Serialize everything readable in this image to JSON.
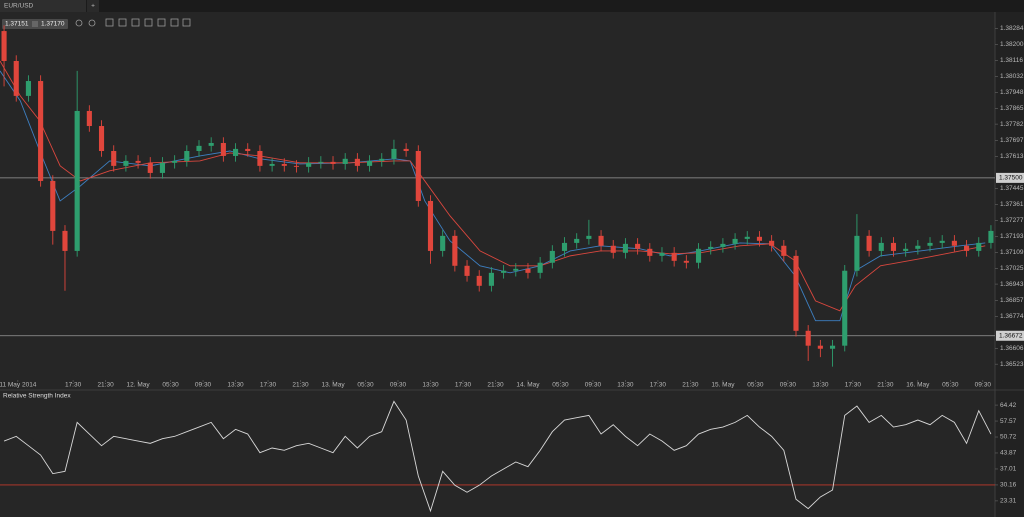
{
  "tabs": [
    "EUR/USD"
  ],
  "new_tab": "+",
  "toolbar": {
    "bid": "1.37151",
    "ask": "1.37170"
  },
  "chart_data": {
    "type": "candlestick",
    "up_color": "#2e9e6e",
    "down_color": "#e0463c",
    "xlim": [
      0,
      122.5
    ],
    "xticks": [
      {
        "value": 2.2,
        "label": "11 May 2014"
      },
      {
        "value": 9,
        "label": "17:30"
      },
      {
        "value": 13,
        "label": "21:30"
      },
      {
        "value": 17,
        "label": "12. May"
      },
      {
        "value": 21,
        "label": "05:30"
      },
      {
        "value": 25,
        "label": "09:30"
      },
      {
        "value": 29,
        "label": "13:30"
      },
      {
        "value": 33,
        "label": "17:30"
      },
      {
        "value": 37,
        "label": "21:30"
      },
      {
        "value": 41,
        "label": "13. May"
      },
      {
        "value": 45,
        "label": "05:30"
      },
      {
        "value": 49,
        "label": "09:30"
      },
      {
        "value": 53,
        "label": "13:30"
      },
      {
        "value": 57,
        "label": "17:30"
      },
      {
        "value": 61,
        "label": "21:30"
      },
      {
        "value": 65,
        "label": "14. May"
      },
      {
        "value": 69,
        "label": "05:30"
      },
      {
        "value": 73,
        "label": "09:30"
      },
      {
        "value": 77,
        "label": "13:30"
      },
      {
        "value": 81,
        "label": "17:30"
      },
      {
        "value": 85,
        "label": "21:30"
      },
      {
        "value": 89,
        "label": "15. May"
      },
      {
        "value": 93,
        "label": "05:30"
      },
      {
        "value": 97,
        "label": "09:30"
      },
      {
        "value": 101,
        "label": "13:30"
      },
      {
        "value": 105,
        "label": "17:30"
      },
      {
        "value": 109,
        "label": "21:30"
      },
      {
        "value": 113,
        "label": "16. May"
      },
      {
        "value": 117,
        "label": "05:30"
      },
      {
        "value": 121,
        "label": "09:30"
      }
    ],
    "ylim": [
      1.3644,
      1.3837
    ],
    "yticks": [
      1.38284,
      {
        "value": 1.382,
        "label": "1.38200"
      },
      1.38116,
      1.38032,
      1.37948,
      1.37865,
      1.37782,
      1.37697,
      1.37613,
      1.37445,
      1.37361,
      1.37277,
      1.37193,
      1.37109,
      1.37025,
      1.36943,
      1.36857,
      1.36774,
      1.36606,
      1.36523
    ],
    "levels": [
      {
        "value": 1.375,
        "label": "1.37500"
      },
      1.36672
    ],
    "x": [
      0.5,
      2,
      3.5,
      5,
      6.5,
      8,
      9.5,
      11,
      12.5,
      14,
      15.5,
      17,
      18.5,
      20,
      21.5,
      23,
      24.5,
      26,
      27.5,
      29,
      30.5,
      32,
      33.5,
      35,
      36.5,
      38,
      39.5,
      41,
      42.5,
      44,
      45.5,
      47,
      48.5,
      50,
      51.5,
      53,
      54.5,
      56,
      57.5,
      59,
      60.5,
      62,
      63.5,
      65,
      66.5,
      68,
      69.5,
      71,
      72.5,
      74,
      75.5,
      77,
      78.5,
      80,
      81.5,
      83,
      84.5,
      86,
      87.5,
      89,
      90.5,
      92,
      93.5,
      95,
      96.5,
      98,
      99.5,
      101,
      102.5,
      104,
      105.5,
      107,
      108.5,
      110,
      111.5,
      113,
      114.5,
      116,
      117.5,
      119,
      120.5,
      122
    ],
    "candles": [
      [
        1.3827,
        1.383,
        1.3798,
        1.38113
      ],
      [
        1.38113,
        1.38143,
        1.379,
        1.3793
      ],
      [
        1.3793,
        1.38038,
        1.379,
        1.38008
      ],
      [
        1.38008,
        1.38038,
        1.37454,
        1.37484
      ],
      [
        1.37484,
        1.37514,
        1.3715,
        1.37222
      ],
      [
        1.37222,
        1.37252,
        1.36908,
        1.37117
      ],
      [
        1.37117,
        1.38061,
        1.37087,
        1.37851
      ],
      [
        1.37851,
        1.37881,
        1.37742,
        1.37772
      ],
      [
        1.37772,
        1.37802,
        1.37611,
        1.37641
      ],
      [
        1.37641,
        1.37671,
        1.37533,
        1.37563
      ],
      [
        1.37563,
        1.37619,
        1.37533,
        1.37589
      ],
      [
        1.37589,
        1.37619,
        1.37549,
        1.37579
      ],
      [
        1.37579,
        1.37609,
        1.37496,
        1.37526
      ],
      [
        1.37526,
        1.37609,
        1.37496,
        1.37579
      ],
      [
        1.37579,
        1.37619,
        1.37549,
        1.37589
      ],
      [
        1.37589,
        1.37671,
        1.37559,
        1.37641
      ],
      [
        1.37641,
        1.37698,
        1.37611,
        1.37668
      ],
      [
        1.37668,
        1.37713,
        1.37638,
        1.37683
      ],
      [
        1.37683,
        1.37713,
        1.37585,
        1.37615
      ],
      [
        1.37615,
        1.37682,
        1.37585,
        1.37652
      ],
      [
        1.37652,
        1.37682,
        1.37611,
        1.37641
      ],
      [
        1.37641,
        1.37671,
        1.37533,
        1.37563
      ],
      [
        1.37563,
        1.37603,
        1.37533,
        1.37573
      ],
      [
        1.37573,
        1.37603,
        1.37533,
        1.37563
      ],
      [
        1.37563,
        1.37593,
        1.37528,
        1.37558
      ],
      [
        1.37558,
        1.37609,
        1.37528,
        1.37579
      ],
      [
        1.37579,
        1.37614,
        1.37549,
        1.37584
      ],
      [
        1.37584,
        1.37614,
        1.37543,
        1.37573
      ],
      [
        1.37573,
        1.3763,
        1.37543,
        1.376
      ],
      [
        1.376,
        1.3763,
        1.37533,
        1.37563
      ],
      [
        1.37563,
        1.37619,
        1.37533,
        1.37589
      ],
      [
        1.37589,
        1.3763,
        1.37559,
        1.376
      ],
      [
        1.376,
        1.377,
        1.3757,
        1.37652
      ],
      [
        1.37652,
        1.37682,
        1.37611,
        1.37641
      ],
      [
        1.37641,
        1.37671,
        1.37349,
        1.37379
      ],
      [
        1.37379,
        1.37409,
        1.3705,
        1.37117
      ],
      [
        1.37117,
        1.37226,
        1.37087,
        1.37196
      ],
      [
        1.37196,
        1.37226,
        1.37009,
        1.37039
      ],
      [
        1.37039,
        1.37069,
        1.36956,
        1.36986
      ],
      [
        1.36986,
        1.37016,
        1.36904,
        1.36934
      ],
      [
        1.36934,
        1.37032,
        1.36904,
        1.37002
      ],
      [
        1.37002,
        1.37043,
        1.36972,
        1.37013
      ],
      [
        1.37013,
        1.37053,
        1.36983,
        1.37023
      ],
      [
        1.37023,
        1.37053,
        1.36972,
        1.37002
      ],
      [
        1.37002,
        1.37085,
        1.36972,
        1.37055
      ],
      [
        1.37055,
        1.37147,
        1.37025,
        1.37117
      ],
      [
        1.37117,
        1.37189,
        1.37087,
        1.37159
      ],
      [
        1.37159,
        1.3721,
        1.37129,
        1.3718
      ],
      [
        1.3718,
        1.3728,
        1.3715,
        1.37196
      ],
      [
        1.37196,
        1.37226,
        1.37114,
        1.37144
      ],
      [
        1.37144,
        1.37174,
        1.37077,
        1.37107
      ],
      [
        1.37107,
        1.37184,
        1.37077,
        1.37154
      ],
      [
        1.37154,
        1.37184,
        1.37098,
        1.37128
      ],
      [
        1.37128,
        1.37158,
        1.37061,
        1.37091
      ],
      [
        1.37091,
        1.37137,
        1.37061,
        1.37107
      ],
      [
        1.37107,
        1.37137,
        1.37035,
        1.37065
      ],
      [
        1.37065,
        1.37095,
        1.37025,
        1.37055
      ],
      [
        1.37055,
        1.37158,
        1.37025,
        1.37128
      ],
      [
        1.37128,
        1.37168,
        1.37098,
        1.37138
      ],
      [
        1.37138,
        1.37184,
        1.37108,
        1.37154
      ],
      [
        1.37154,
        1.3721,
        1.37124,
        1.3718
      ],
      [
        1.3718,
        1.37221,
        1.3715,
        1.37191
      ],
      [
        1.37191,
        1.37221,
        1.3714,
        1.3717
      ],
      [
        1.3717,
        1.372,
        1.37114,
        1.37144
      ],
      [
        1.37144,
        1.37174,
        1.37061,
        1.37091
      ],
      [
        1.37091,
        1.37121,
        1.36668,
        1.36698
      ],
      [
        1.36698,
        1.36728,
        1.3654,
        1.3662
      ],
      [
        1.3662,
        1.3665,
        1.3656,
        1.36604
      ],
      [
        1.36604,
        1.3665,
        1.3651,
        1.3662
      ],
      [
        1.3662,
        1.37043,
        1.3659,
        1.37013
      ],
      [
        1.37013,
        1.3731,
        1.36983,
        1.37196
      ],
      [
        1.37196,
        1.37226,
        1.37087,
        1.37117
      ],
      [
        1.37117,
        1.37189,
        1.37087,
        1.37159
      ],
      [
        1.37159,
        1.37189,
        1.37087,
        1.37117
      ],
      [
        1.37117,
        1.37158,
        1.37087,
        1.37128
      ],
      [
        1.37128,
        1.37174,
        1.37098,
        1.37144
      ],
      [
        1.37144,
        1.37189,
        1.37114,
        1.37159
      ],
      [
        1.37159,
        1.372,
        1.37129,
        1.3717
      ],
      [
        1.3717,
        1.372,
        1.37114,
        1.37144
      ],
      [
        1.37144,
        1.37174,
        1.37087,
        1.37117
      ],
      [
        1.37117,
        1.37189,
        1.37087,
        1.37159
      ],
      [
        1.37159,
        1.37252,
        1.37129,
        1.37222
      ]
    ],
    "overlays": [
      {
        "color": "#3d7fc1",
        "x": [
          0,
          2.5,
          4.9,
          7.4,
          9.9,
          13.5,
          18.5,
          24.6,
          28.3,
          32,
          36.9,
          43.1,
          48.6,
          50.5,
          52.3,
          55.4,
          59.1,
          62.8,
          66.5,
          70.2,
          73.9,
          78.8,
          82.5,
          86.2,
          91.1,
          94.8,
          97.9,
          100.4,
          103.4,
          105.3,
          108.4,
          113.3,
          118.2,
          121.3
        ],
        "values": [
          1.38061,
          1.37904,
          1.37641,
          1.37379,
          1.37458,
          1.37589,
          1.37563,
          1.37615,
          1.37641,
          1.376,
          1.37573,
          1.37579,
          1.376,
          1.37589,
          1.37379,
          1.3717,
          1.37039,
          1.37002,
          1.37039,
          1.37117,
          1.37144,
          1.37128,
          1.37091,
          1.37117,
          1.37159,
          1.37154,
          1.36986,
          1.36751,
          1.36751,
          1.37013,
          1.37091,
          1.37117,
          1.37144,
          1.37159
        ]
      },
      {
        "color": "#d9473e",
        "x": [
          0,
          2.5,
          4.9,
          7.4,
          9.9,
          13.5,
          18.5,
          24.6,
          28.3,
          32,
          36.9,
          43.1,
          48.6,
          50.5,
          52.3,
          55.4,
          59.1,
          62.8,
          66.5,
          70.2,
          73.9,
          78.8,
          82.5,
          86.2,
          91.1,
          94.8,
          97.9,
          100.4,
          103.4,
          105.3,
          108.4,
          113.3,
          118.2,
          121.3
        ],
        "values": [
          1.38113,
          1.3793,
          1.37799,
          1.37563,
          1.37484,
          1.37537,
          1.37579,
          1.37589,
          1.37631,
          1.37615,
          1.37579,
          1.37579,
          1.37589,
          1.37589,
          1.37484,
          1.37301,
          1.37117,
          1.37039,
          1.37039,
          1.37091,
          1.37117,
          1.37117,
          1.37102,
          1.37107,
          1.37144,
          1.37154,
          1.37065,
          1.36855,
          1.36803,
          1.36934,
          1.37039,
          1.37076,
          1.37117,
          1.37144
        ]
      }
    ],
    "rsi": {
      "title": "Relative Strength Index",
      "color": "#d8d8d8",
      "level_color": "#c0392b",
      "ylim": [
        16.4,
        66.6
      ],
      "yticks": [
        64.42,
        57.57,
        50.72,
        43.87,
        37.01,
        30.16,
        23.31
      ],
      "level": 30.16,
      "values": [
        49,
        51,
        47,
        43,
        35,
        36,
        57,
        52,
        47,
        51,
        50,
        49,
        48,
        50,
        51,
        53,
        55,
        57,
        50,
        54,
        52,
        44,
        46,
        45,
        47,
        48,
        46,
        44,
        51,
        46,
        51,
        53,
        66,
        58,
        34,
        19,
        36,
        30,
        27,
        30,
        34,
        37,
        40,
        38,
        45,
        53,
        58,
        59,
        60,
        52,
        56,
        51,
        47,
        52,
        49,
        45,
        47,
        52,
        54,
        55,
        57,
        60,
        55,
        51,
        45,
        24,
        20,
        25,
        28,
        60,
        64,
        57,
        60,
        55,
        56,
        58,
        56,
        60,
        57,
        48,
        62,
        52
      ]
    }
  }
}
